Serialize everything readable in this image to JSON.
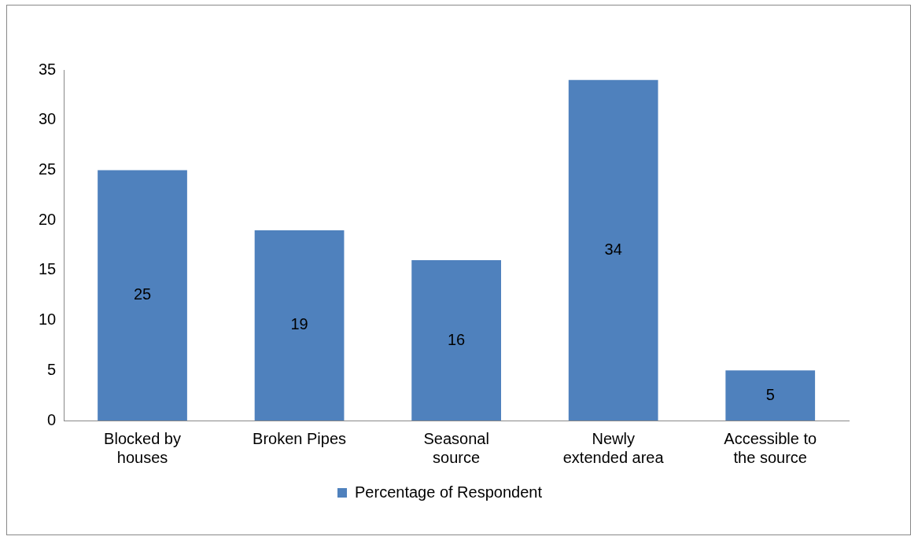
{
  "chart_data": {
    "type": "bar",
    "categories": [
      "Blocked by houses",
      "Broken Pipes",
      "Seasonal source",
      "Newly extended area",
      "Accessible to the source"
    ],
    "series": [
      {
        "name": "Percentage of Respondent",
        "color": "#4f81bd",
        "values": [
          25,
          19,
          16,
          34,
          5
        ]
      }
    ],
    "ylim": [
      0,
      35
    ],
    "yticks": [
      0,
      5,
      10,
      15,
      20,
      25,
      30,
      35
    ],
    "grid": false,
    "legend": "bottom",
    "data_labels": true
  }
}
